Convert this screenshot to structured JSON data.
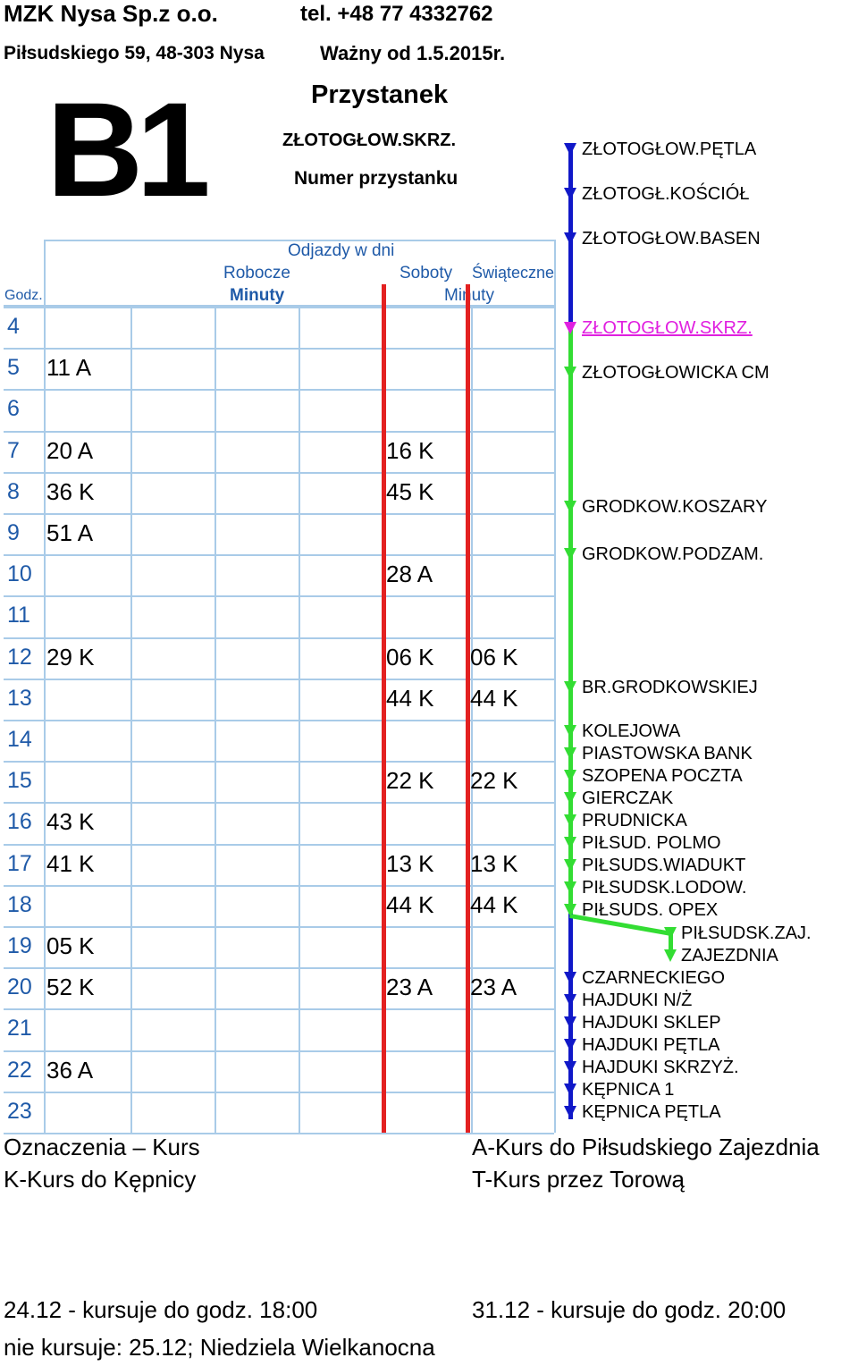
{
  "header": {
    "company": "MZK Nysa Sp.z o.o.",
    "phone": "tel. +48 77 4332762",
    "address": "Piłsudskiego 59, 48-303 Nysa",
    "valid_from": "Ważny od 1.5.2015r.",
    "line": "B1",
    "stop_label": "Przystanek",
    "stop_name": "ZŁOTOGŁOW.SKRZ.",
    "stop_number_label": "Numer przystanku"
  },
  "table": {
    "title": "Odjazdy w dni",
    "col_weekday": "Robocze",
    "col_saturday": "Soboty",
    "col_holiday": "Świąteczne",
    "hour_label": "Godz.",
    "minutes_weekday": "Minuty",
    "minutes_weekend": "Minuty",
    "rows": [
      {
        "hour": "4",
        "weekday": "",
        "saturday": "",
        "holiday": ""
      },
      {
        "hour": "5",
        "weekday": "11 A",
        "saturday": "",
        "holiday": ""
      },
      {
        "hour": "6",
        "weekday": "",
        "saturday": "",
        "holiday": ""
      },
      {
        "hour": "7",
        "weekday": "20 A",
        "saturday": "16 K",
        "holiday": ""
      },
      {
        "hour": "8",
        "weekday": "36 K",
        "saturday": "45 K",
        "holiday": ""
      },
      {
        "hour": "9",
        "weekday": "51 A",
        "saturday": "",
        "holiday": ""
      },
      {
        "hour": "10",
        "weekday": "",
        "saturday": "28 A",
        "holiday": ""
      },
      {
        "hour": "11",
        "weekday": "",
        "saturday": "",
        "holiday": ""
      },
      {
        "hour": "12",
        "weekday": "29 K",
        "saturday": "06 K",
        "holiday": "06 K"
      },
      {
        "hour": "13",
        "weekday": "",
        "saturday": "44 K",
        "holiday": "44 K"
      },
      {
        "hour": "14",
        "weekday": "",
        "saturday": "",
        "holiday": ""
      },
      {
        "hour": "15",
        "weekday": "",
        "saturday": "22 K",
        "holiday": "22 K"
      },
      {
        "hour": "16",
        "weekday": "43 K",
        "saturday": "",
        "holiday": ""
      },
      {
        "hour": "17",
        "weekday": "41 K",
        "saturday": "13 K",
        "holiday": "13 K"
      },
      {
        "hour": "18",
        "weekday": "",
        "saturday": "44 K",
        "holiday": "44 K"
      },
      {
        "hour": "19",
        "weekday": "05 K",
        "saturday": "",
        "holiday": ""
      },
      {
        "hour": "20",
        "weekday": "52 K",
        "saturday": "23 A",
        "holiday": "23 A"
      },
      {
        "hour": "21",
        "weekday": "",
        "saturday": "",
        "holiday": ""
      },
      {
        "hour": "22",
        "weekday": "36 A",
        "saturday": "",
        "holiday": ""
      },
      {
        "hour": "23",
        "weekday": "",
        "saturday": "",
        "holiday": ""
      }
    ]
  },
  "legend": {
    "title": "Oznaczenia – Kurs",
    "k": "K-Kurs do Kępnicy",
    "a": "A-Kurs do Piłsudskiego Zajezdnia",
    "t": "T-Kurs przez Torową"
  },
  "notes": {
    "n1": "24.12 - kursuje do godz. 18:00",
    "n2": "31.12 - kursuje do godz. 20:00",
    "n3": "nie kursuje: 25.12; Niedziela Wielkanocna"
  },
  "route": {
    "colors": {
      "past": "#1018c8",
      "current": "#e020e0",
      "future": "#33dd33"
    },
    "stops": [
      {
        "name": "ZŁOTOGŁOW.PĘTLA",
        "state": "past"
      },
      {
        "name": "ZŁOTOGŁ.KOŚCIÓŁ",
        "state": "past"
      },
      {
        "name": "ZŁOTOGŁOW.BASEN",
        "state": "past"
      },
      {
        "name": "ZŁOTOGŁOW.SKRZ.",
        "state": "current"
      },
      {
        "name": "ZŁOTOGŁOWICKA CM",
        "state": "future"
      },
      {
        "name": "GRODKOW.KOSZARY",
        "state": "future"
      },
      {
        "name": "GRODKOW.PODZAM.",
        "state": "future"
      },
      {
        "name": "BR.GRODKOWSKIEJ",
        "state": "future"
      },
      {
        "name": "KOLEJOWA",
        "state": "future"
      },
      {
        "name": "PIASTOWSKA BANK",
        "state": "future"
      },
      {
        "name": "SZOPENA POCZTA",
        "state": "future"
      },
      {
        "name": "GIERCZAK",
        "state": "future"
      },
      {
        "name": "PRUDNICKA",
        "state": "future"
      },
      {
        "name": "PIŁSUD. POLMO",
        "state": "future"
      },
      {
        "name": "PIŁSUDS.WIADUKT",
        "state": "future"
      },
      {
        "name": "PIŁSUDSK.LODOW.",
        "state": "future"
      },
      {
        "name": "PIŁSUDS. OPEX",
        "state": "future"
      },
      {
        "name": "PIŁSUDSK.ZAJ.",
        "state": "branch"
      },
      {
        "name": "ZAJEZDNIA",
        "state": "branch"
      },
      {
        "name": "CZARNECKIEGO",
        "state": "past"
      },
      {
        "name": "HAJDUKI N/Ż",
        "state": "past"
      },
      {
        "name": "HAJDUKI SKLEP",
        "state": "past"
      },
      {
        "name": "HAJDUKI PĘTLA",
        "state": "past"
      },
      {
        "name": "HAJDUKI SKRZYŻ.",
        "state": "past"
      },
      {
        "name": "KĘPNICA 1",
        "state": "past"
      },
      {
        "name": "KĘPNICA PĘTLA",
        "state": "past"
      }
    ]
  }
}
